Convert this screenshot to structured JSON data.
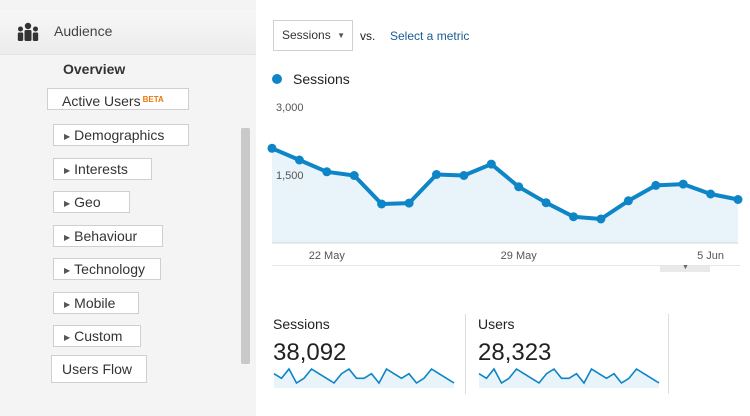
{
  "sidebar": {
    "section_label": "Audience",
    "section_icon": "audience-people-icon",
    "items": [
      {
        "label": "Overview",
        "active": true
      },
      {
        "label": "Active Users",
        "badge": "BETA"
      },
      {
        "label": "Demographics",
        "expandable": true
      },
      {
        "label": "Interests",
        "expandable": true
      },
      {
        "label": "Geo",
        "expandable": true
      },
      {
        "label": "Behaviour",
        "expandable": true
      },
      {
        "label": "Technology",
        "expandable": true
      },
      {
        "label": "Mobile",
        "expandable": true
      },
      {
        "label": "Custom",
        "expandable": true
      },
      {
        "label": "Users Flow"
      }
    ]
  },
  "toolbar": {
    "metric_selected": "Sessions",
    "vs_label": "vs.",
    "select_metric_link": "Select a metric"
  },
  "colors": {
    "accent": "#0d85c7",
    "area_fill": "#e8f3fa",
    "link": "#1a5b94",
    "beta": "#e8790c"
  },
  "chart_data": {
    "type": "line",
    "series": [
      {
        "name": "Sessions",
        "values": [
          2090,
          1830,
          1570,
          1490,
          860,
          880,
          1510,
          1490,
          1740,
          1240,
          890,
          580,
          530,
          930,
          1270,
          1300,
          1080,
          960
        ]
      }
    ],
    "x_tick_labels": [
      "22 May",
      "29 May",
      "5 Jun"
    ],
    "y_tick_labels": [
      "3,000",
      "1,500"
    ],
    "ylim": [
      0,
      3000
    ],
    "grid": false,
    "area_fill": true
  },
  "scorecards": [
    {
      "label": "Sessions",
      "value": "38,092",
      "sparkline": [
        5,
        4,
        6,
        3,
        4,
        6,
        5,
        4,
        3,
        5,
        6,
        4,
        4,
        5,
        3,
        6,
        5,
        4,
        5,
        3,
        4,
        6,
        5,
        4,
        3
      ]
    },
    {
      "label": "Users",
      "value": "28,323",
      "sparkline": [
        5,
        4,
        6,
        3,
        4,
        6,
        5,
        4,
        3,
        5,
        6,
        4,
        4,
        5,
        3,
        6,
        5,
        4,
        5,
        3,
        4,
        6,
        5,
        4,
        3
      ]
    }
  ]
}
